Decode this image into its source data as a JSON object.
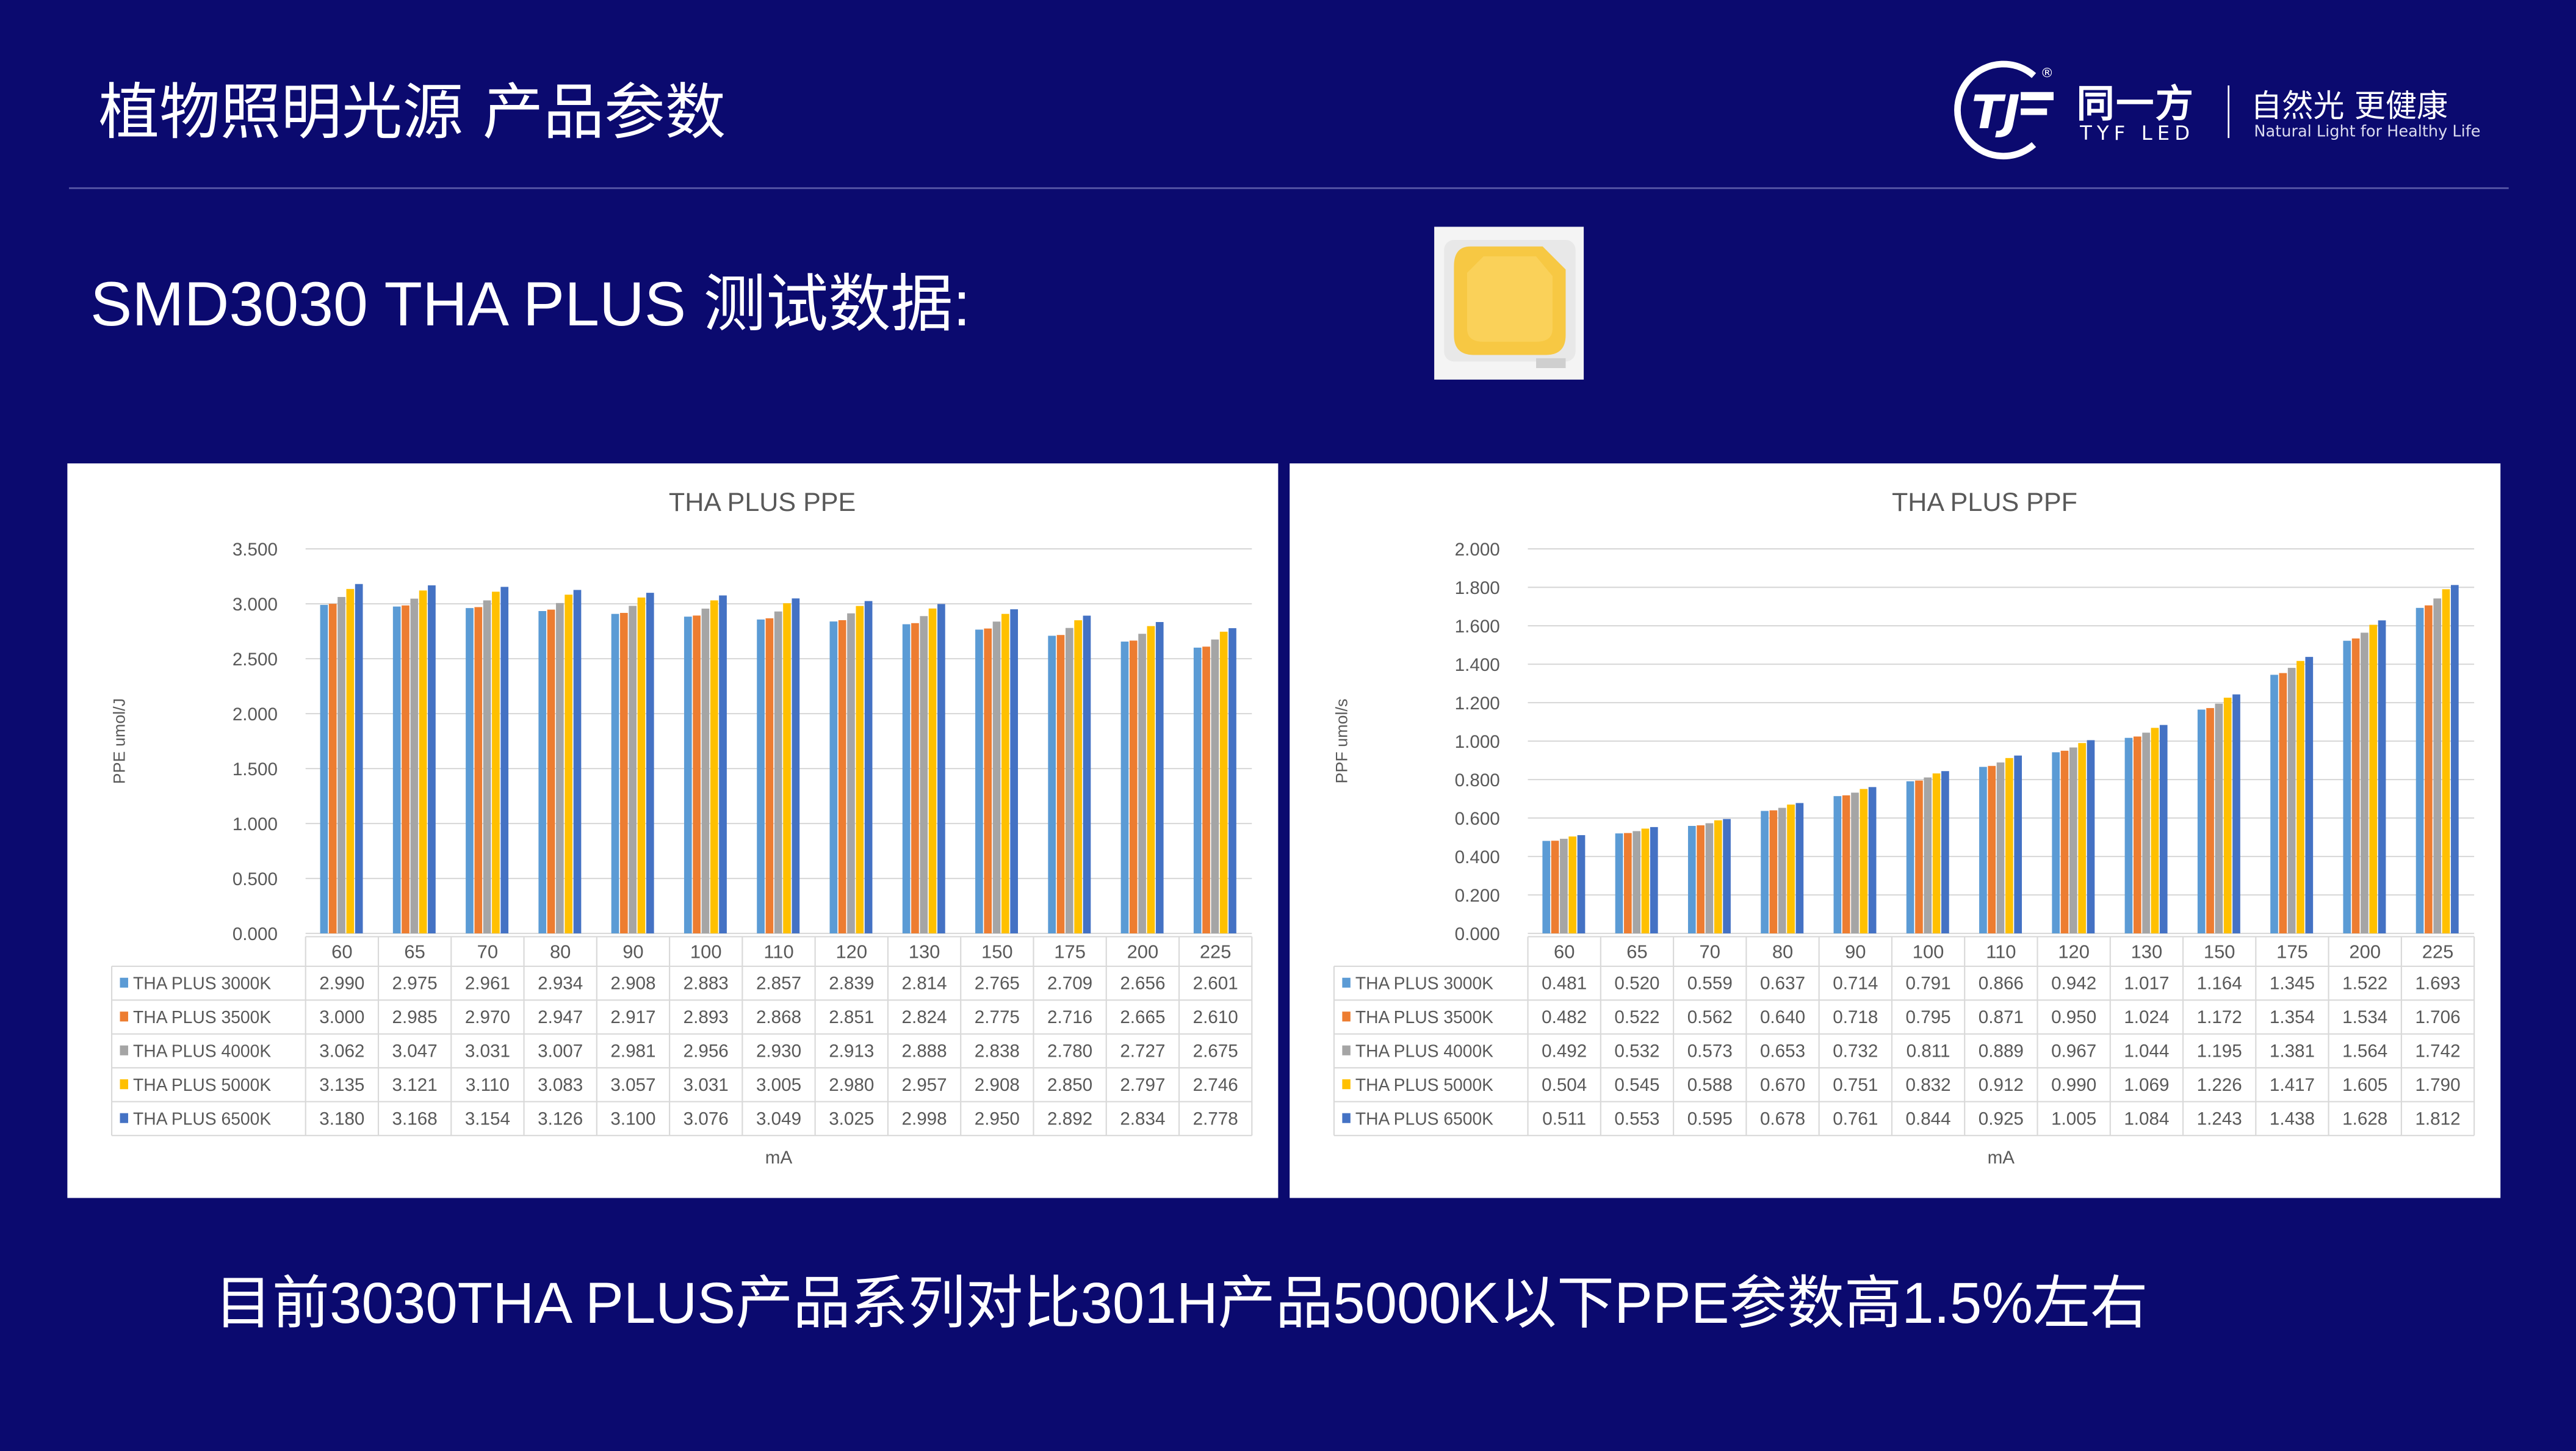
{
  "header": {
    "title": "植物照明光源 产品参数"
  },
  "logo": {
    "brand_cn": "同一方",
    "brand_en": "TYF LED",
    "slogan": "自然光 更健康",
    "slogan_en": "Natural Light for Healthy Life",
    "mark": "TJF"
  },
  "subtitle": "SMD3030 THA PLUS 测试数据:",
  "footer_text": "目前3030THA PLUS产品系列对比301H产品5000K以下PPE参数高1.5%左右",
  "colors": {
    "background": "#0b0a6f",
    "series": [
      "#5b9bd5",
      "#ed7d31",
      "#a5a5a5",
      "#ffc000",
      "#4472c4"
    ]
  },
  "chart_data": [
    {
      "type": "bar",
      "title": "THA PLUS PPE",
      "xlabel": "mA",
      "ylabel": "PPE umol/J",
      "ylim": [
        0,
        3.5
      ],
      "yticks": [
        "0.000",
        "0.500",
        "1.000",
        "1.500",
        "2.000",
        "2.500",
        "3.000",
        "3.500"
      ],
      "grid": true,
      "legend": "table-bottom",
      "categories": [
        "60",
        "65",
        "70",
        "80",
        "90",
        "100",
        "110",
        "120",
        "130",
        "150",
        "175",
        "200",
        "225"
      ],
      "series": [
        {
          "name": "THA PLUS 3000K",
          "values": [
            "2.990",
            "2.975",
            "2.961",
            "2.934",
            "2.908",
            "2.883",
            "2.857",
            "2.839",
            "2.814",
            "2.765",
            "2.709",
            "2.656",
            "2.601"
          ]
        },
        {
          "name": "THA PLUS 3500K",
          "values": [
            "3.000",
            "2.985",
            "2.970",
            "2.947",
            "2.917",
            "2.893",
            "2.868",
            "2.851",
            "2.824",
            "2.775",
            "2.716",
            "2.665",
            "2.610"
          ]
        },
        {
          "name": "THA PLUS 4000K",
          "values": [
            "3.062",
            "3.047",
            "3.031",
            "3.007",
            "2.981",
            "2.956",
            "2.930",
            "2.913",
            "2.888",
            "2.838",
            "2.780",
            "2.727",
            "2.675"
          ]
        },
        {
          "name": "THA PLUS 5000K",
          "values": [
            "3.135",
            "3.121",
            "3.110",
            "3.083",
            "3.057",
            "3.031",
            "3.005",
            "2.980",
            "2.957",
            "2.908",
            "2.850",
            "2.797",
            "2.746"
          ]
        },
        {
          "name": "THA PLUS 6500K",
          "values": [
            "3.180",
            "3.168",
            "3.154",
            "3.126",
            "3.100",
            "3.076",
            "3.049",
            "3.025",
            "2.998",
            "2.950",
            "2.892",
            "2.834",
            "2.778"
          ]
        }
      ]
    },
    {
      "type": "bar",
      "title": "THA PLUS PPF",
      "xlabel": "mA",
      "ylabel": "PPF umol/s",
      "ylim": [
        0,
        2
      ],
      "yticks": [
        "0.000",
        "0.200",
        "0.400",
        "0.600",
        "0.800",
        "1.000",
        "1.200",
        "1.400",
        "1.600",
        "1.800",
        "2.000"
      ],
      "grid": true,
      "legend": "table-bottom",
      "categories": [
        "60",
        "65",
        "70",
        "80",
        "90",
        "100",
        "110",
        "120",
        "130",
        "150",
        "175",
        "200",
        "225"
      ],
      "series": [
        {
          "name": "THA PLUS 3000K",
          "values": [
            "0.481",
            "0.520",
            "0.559",
            "0.637",
            "0.714",
            "0.791",
            "0.866",
            "0.942",
            "1.017",
            "1.164",
            "1.345",
            "1.522",
            "1.693"
          ]
        },
        {
          "name": "THA PLUS 3500K",
          "values": [
            "0.482",
            "0.522",
            "0.562",
            "0.640",
            "0.718",
            "0.795",
            "0.871",
            "0.950",
            "1.024",
            "1.172",
            "1.354",
            "1.534",
            "1.706"
          ]
        },
        {
          "name": "THA PLUS 4000K",
          "values": [
            "0.492",
            "0.532",
            "0.573",
            "0.653",
            "0.732",
            "0.811",
            "0.889",
            "0.967",
            "1.044",
            "1.195",
            "1.381",
            "1.564",
            "1.742"
          ]
        },
        {
          "name": "THA PLUS 5000K",
          "values": [
            "0.504",
            "0.545",
            "0.588",
            "0.670",
            "0.751",
            "0.832",
            "0.912",
            "0.990",
            "1.069",
            "1.226",
            "1.417",
            "1.605",
            "1.790"
          ]
        },
        {
          "name": "THA PLUS 6500K",
          "values": [
            "0.511",
            "0.553",
            "0.595",
            "0.678",
            "0.761",
            "0.844",
            "0.925",
            "1.005",
            "1.084",
            "1.243",
            "1.438",
            "1.628",
            "1.812"
          ]
        }
      ]
    }
  ]
}
